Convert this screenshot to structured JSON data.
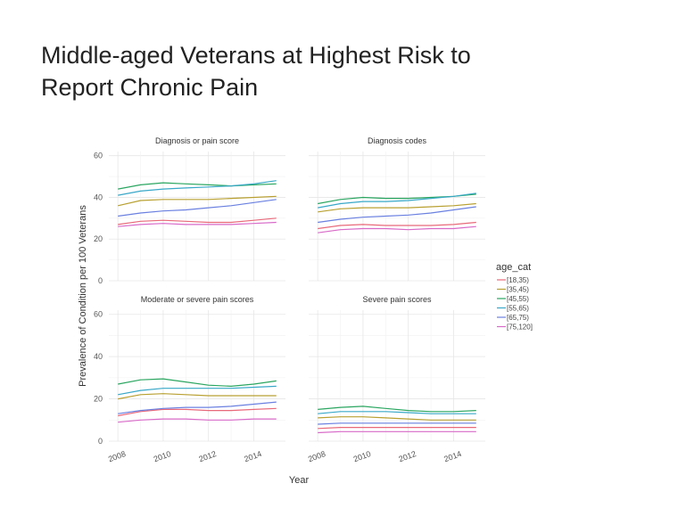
{
  "slide": {
    "title_line1": "Middle-aged Veterans at Highest Risk to",
    "title_line2": "Report Chronic Pain"
  },
  "chart_data": {
    "type": "line",
    "xlabel": "Year",
    "ylabel": "Prevalence of Condition per 100 Veterans",
    "ylim": [
      0,
      62
    ],
    "yticks": [
      0,
      20,
      40,
      60
    ],
    "xticks": [
      2008,
      2010,
      2012,
      2014
    ],
    "x": [
      2008,
      2009,
      2010,
      2011,
      2012,
      2013,
      2014,
      2015
    ],
    "grid": true,
    "legend": {
      "title": "age_cat",
      "position": "right",
      "entries": [
        "[18,35)",
        "[35,45)",
        "[45,55)",
        "[55,65)",
        "[65,75)",
        "[75,120]"
      ]
    },
    "series_colors": [
      "#e8697a",
      "#b8a030",
      "#2aa660",
      "#38a8c8",
      "#6a80e0",
      "#d86ac8"
    ],
    "panels": [
      {
        "title": "Diagnosis or pain score",
        "series": [
          {
            "values": [
              27,
              28.5,
              29,
              28.5,
              28,
              28,
              29,
              30
            ]
          },
          {
            "values": [
              36,
              38.5,
              39,
              39,
              39,
              39.5,
              40,
              40.5
            ]
          },
          {
            "values": [
              44,
              46,
              47,
              46.5,
              46,
              45.5,
              46,
              46.5
            ]
          },
          {
            "values": [
              41,
              43,
              44,
              44.5,
              45,
              45.5,
              46.5,
              48
            ]
          },
          {
            "values": [
              31,
              32.5,
              33.5,
              34,
              35,
              36,
              37.5,
              39
            ]
          },
          {
            "values": [
              26,
              27,
              27.5,
              27,
              27,
              27,
              27.5,
              28
            ]
          }
        ]
      },
      {
        "title": "Diagnosis codes",
        "series": [
          {
            "values": [
              25,
              26.5,
              27,
              26.5,
              26.5,
              26.5,
              27,
              28
            ]
          },
          {
            "values": [
              33,
              34.5,
              35,
              35,
              35,
              35.5,
              36,
              37
            ]
          },
          {
            "values": [
              37,
              39,
              40,
              39.5,
              39.5,
              40,
              40.5,
              41.5
            ]
          },
          {
            "values": [
              35,
              37,
              38,
              38,
              38.5,
              39.5,
              40.5,
              42
            ]
          },
          {
            "values": [
              28,
              29.5,
              30.5,
              31,
              31.5,
              32.5,
              34,
              35.5
            ]
          },
          {
            "values": [
              23,
              24.5,
              25,
              25,
              24.5,
              25,
              25,
              26
            ]
          }
        ]
      },
      {
        "title": "Moderate or severe pain scores",
        "series": [
          {
            "values": [
              12,
              14,
              15,
              15,
              14.5,
              14.5,
              15,
              15.5
            ]
          },
          {
            "values": [
              20,
              22,
              22.5,
              22,
              21.5,
              21.5,
              21.5,
              21.5
            ]
          },
          {
            "values": [
              27,
              29,
              29.5,
              28,
              26.5,
              26,
              27,
              28.5
            ]
          },
          {
            "values": [
              22,
              24,
              25,
              25,
              25,
              25,
              25.5,
              26
            ]
          },
          {
            "values": [
              13,
              14.5,
              15.5,
              16,
              16,
              16.5,
              17.5,
              18.5
            ]
          },
          {
            "values": [
              9,
              10,
              10.5,
              10.5,
              10,
              10,
              10.5,
              10.5
            ]
          }
        ]
      },
      {
        "title": "Severe pain scores",
        "series": [
          {
            "values": [
              6,
              6.5,
              6.5,
              6.5,
              6.5,
              6.5,
              6.5,
              6.5
            ]
          },
          {
            "values": [
              11,
              11.5,
              11.5,
              11,
              10.5,
              10,
              10,
              10
            ]
          },
          {
            "values": [
              15,
              16,
              16.5,
              15.5,
              14.5,
              14,
              14,
              14.5
            ]
          },
          {
            "values": [
              13,
              14,
              14,
              14,
              13.5,
              13,
              13,
              13
            ]
          },
          {
            "values": [
              8,
              8.5,
              8.5,
              8.5,
              8.5,
              8.5,
              8.5,
              8.5
            ]
          },
          {
            "values": [
              4,
              4.5,
              4.5,
              4.5,
              4.5,
              4.5,
              4.5,
              4.5
            ]
          }
        ]
      }
    ]
  }
}
